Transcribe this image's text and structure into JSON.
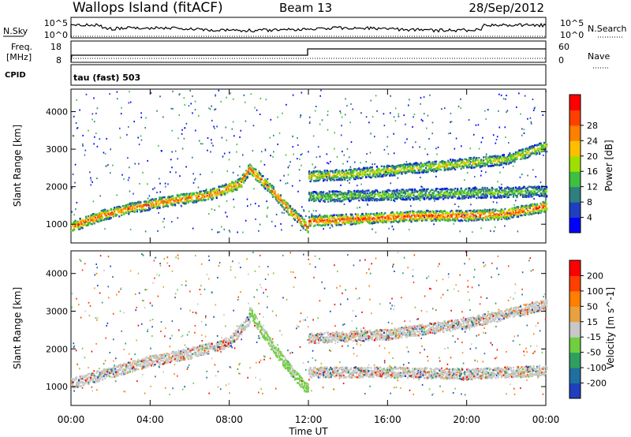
{
  "header": {
    "site": "Wallops Island (fitACF)",
    "beam": "Beam 13",
    "date": "28/Sep/2012"
  },
  "strips": {
    "nsky_label": "N.Sky",
    "nsky_top": "10^5",
    "nsky_bottom": "10^0",
    "nsearch_label": "N.Search",
    "nsearch_top": "10^5",
    "nsearch_bottom": "10^0",
    "freq_label_1": "Freq.",
    "freq_label_2": "[MHz]",
    "freq_top": "18",
    "freq_bottom": "8",
    "nave_label": "Nave",
    "nave_top": "60",
    "nave_bottom": "0",
    "cpid_label": "CPID",
    "cpid_text": "tau (fast) 503"
  },
  "chart_data": [
    {
      "type": "heatmap",
      "name": "power",
      "ylabel": "Slant Range [km]",
      "yticks": [
        "1000",
        "2000",
        "3000",
        "4000"
      ],
      "ylim": [
        500,
        4600
      ],
      "xlim": [
        0,
        24
      ],
      "colorbar_label": "Power [dB]",
      "colorbar_ticks": [
        "4",
        "8",
        "12",
        "16",
        "20",
        "24",
        "28"
      ],
      "colorbar_colors": [
        "#0000ff",
        "#1f3fbf",
        "#2f7f7f",
        "#3fbf3f",
        "#9fdf00",
        "#ffbf00",
        "#ff7f00",
        "#ff3f00",
        "#ff0000"
      ],
      "bands": [
        {
          "x": [
            0.0,
            1.5,
            3.0,
            5.0,
            7.0,
            8.5,
            9.0,
            10.0,
            11.0,
            12.0
          ],
          "y": [
            950,
            1250,
            1450,
            1650,
            1800,
            2100,
            2500,
            2000,
            1400,
            900
          ],
          "level": 0.85
        },
        {
          "x": [
            12.0,
            14.0,
            16.0,
            18.0,
            20.0,
            22.0,
            24.0
          ],
          "y": [
            1100,
            1150,
            1200,
            1250,
            1250,
            1300,
            1500
          ],
          "level": 0.9
        },
        {
          "x": [
            12.0,
            14.0,
            16.0,
            18.0,
            20.0,
            22.0,
            24.0
          ],
          "y": [
            2300,
            2350,
            2450,
            2550,
            2650,
            2750,
            3100
          ],
          "level": 0.6
        },
        {
          "x": [
            12.0,
            16.0,
            20.0,
            24.0
          ],
          "y": [
            1750,
            1800,
            1850,
            1900
          ],
          "level": 0.45
        }
      ]
    },
    {
      "type": "heatmap",
      "name": "velocity",
      "ylabel": "Slant Range [km]",
      "yticks": [
        "1000",
        "2000",
        "3000",
        "4000"
      ],
      "ylim": [
        500,
        4600
      ],
      "xlim": [
        0,
        24
      ],
      "colorbar_label": "Velocity [m s^-1]",
      "colorbar_ticks": [
        "200",
        "100",
        "50",
        "15",
        "-15",
        "-50",
        "-100",
        "-200"
      ],
      "colorbar_colors": [
        "#1f3fbf",
        "#1f6f9f",
        "#2f9f5f",
        "#6fcf3f",
        "#c8c8c8",
        "#e8a040",
        "#ff7f00",
        "#ff3f00",
        "#ff0000"
      ],
      "bands": [
        {
          "x": [
            0.0,
            2.0,
            4.0,
            6.0,
            8.0,
            9.0
          ],
          "y": [
            1100,
            1400,
            1700,
            1900,
            2200,
            2800
          ],
          "level": 0.5
        },
        {
          "x": [
            9.0,
            10.0,
            11.0,
            12.0
          ],
          "y": [
            3000,
            2200,
            1500,
            900
          ],
          "level": 0.3
        },
        {
          "x": [
            12.0,
            16.0,
            20.0,
            24.0
          ],
          "y": [
            1400,
            1400,
            1350,
            1450
          ],
          "level": 0.5
        },
        {
          "x": [
            12.0,
            16.0,
            20.0,
            24.0
          ],
          "y": [
            2300,
            2400,
            2700,
            3200
          ],
          "level": 0.5
        }
      ]
    }
  ],
  "xaxis": {
    "ticks": [
      "00:00",
      "04:00",
      "08:00",
      "12:00",
      "16:00",
      "20:00",
      "00:00"
    ],
    "label": "Time UT"
  }
}
